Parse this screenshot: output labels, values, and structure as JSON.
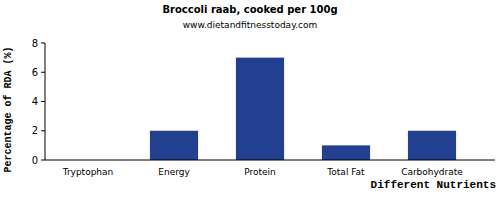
{
  "chart_data": {
    "type": "bar",
    "title": "Broccoli raab, cooked per 100g",
    "subtitle": "www.dietandfitnesstoday.com",
    "x_label": "Different Nutrients",
    "y_label": "Percentage of RDA (%)",
    "categories": [
      "Tryptophan",
      "Energy",
      "Protein",
      "Total Fat",
      "Carbohydrate"
    ],
    "values": [
      0,
      2,
      7,
      1,
      2
    ],
    "color": "#233f8f",
    "ylim": [
      0,
      8
    ],
    "yticks": [
      0,
      2,
      4,
      6,
      8
    ],
    "grid": false
  }
}
